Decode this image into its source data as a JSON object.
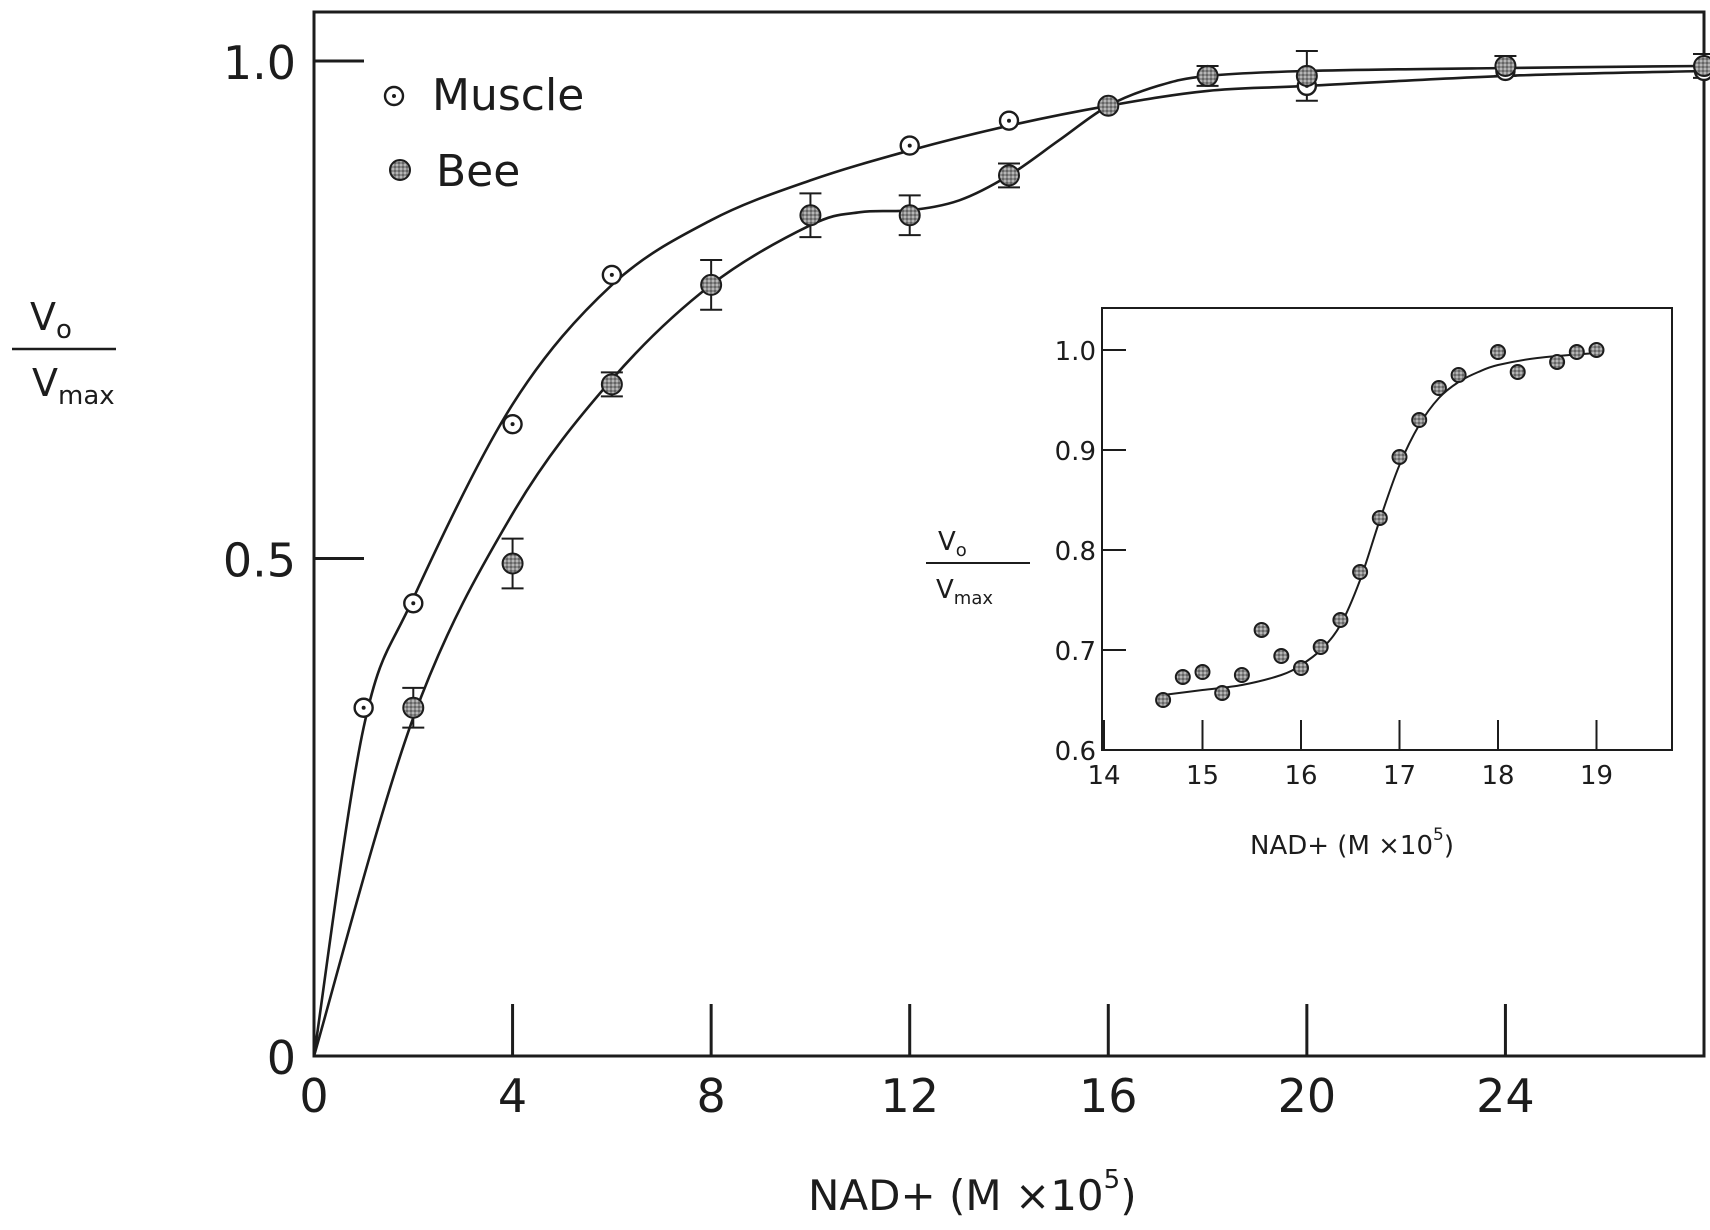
{
  "chart_data": [
    {
      "type": "scatter",
      "title": "",
      "xlabel": "NAD+  (M ×10",
      "xlabel_exp": "5",
      "xlabel_close": ")",
      "ylabel_num": "V",
      "ylabel_num_sub": "o",
      "ylabel_den": "V",
      "ylabel_den_sub": "max",
      "xlim": [
        0,
        28
      ],
      "ylim": [
        0,
        1.05
      ],
      "xticks": [
        0,
        4,
        8,
        12,
        16,
        20,
        24
      ],
      "xtick_labels": [
        "0",
        "4",
        "8",
        "12",
        "16",
        "20",
        "24"
      ],
      "yticks": [
        0,
        0.5,
        1.0
      ],
      "ytick_labels": [
        "0",
        "0.5",
        "1.0"
      ],
      "legend_position": "top-left",
      "series": [
        {
          "name": "Muscle",
          "marker": "open-dot",
          "x": [
            1,
            2,
            4,
            6,
            12,
            14,
            16,
            18,
            20,
            24,
            28
          ],
          "y": [
            0.35,
            0.455,
            0.635,
            0.785,
            0.915,
            0.94,
            0.955,
            0.985,
            0.975,
            0.99,
            0.99
          ],
          "curve": [
            [
              0,
              0
            ],
            [
              1,
              0.33
            ],
            [
              2,
              0.46
            ],
            [
              4,
              0.655
            ],
            [
              6,
              0.775
            ],
            [
              8,
              0.84
            ],
            [
              10,
              0.88
            ],
            [
              12,
              0.91
            ],
            [
              14,
              0.935
            ],
            [
              16,
              0.955
            ],
            [
              18,
              0.97
            ],
            [
              20,
              0.975
            ],
            [
              24,
              0.985
            ],
            [
              28,
              0.99
            ]
          ]
        },
        {
          "name": "Bee",
          "marker": "filled-dot",
          "x": [
            2,
            4,
            6,
            8,
            10,
            12,
            14,
            16,
            18,
            20,
            24,
            28
          ],
          "y": [
            0.35,
            0.495,
            0.675,
            0.775,
            0.845,
            0.845,
            0.885,
            0.955,
            0.985,
            0.985,
            0.995,
            0.995
          ],
          "err": [
            0.02,
            0.025,
            0.012,
            0.025,
            0.022,
            0.02,
            0.012,
            0.0,
            0.01,
            0.025,
            0.01,
            0.012
          ],
          "curve": [
            [
              0,
              0
            ],
            [
              2,
              0.34
            ],
            [
              4,
              0.545
            ],
            [
              6,
              0.68
            ],
            [
              8,
              0.775
            ],
            [
              10,
              0.835
            ],
            [
              11,
              0.848
            ],
            [
              12,
              0.85
            ],
            [
              13,
              0.86
            ],
            [
              14,
              0.885
            ],
            [
              15,
              0.92
            ],
            [
              16,
              0.955
            ],
            [
              17,
              0.975
            ],
            [
              18,
              0.985
            ],
            [
              20,
              0.99
            ],
            [
              24,
              0.993
            ],
            [
              28,
              0.995
            ]
          ]
        }
      ]
    },
    {
      "type": "scatter",
      "title": "",
      "xlabel": "NAD+  (M ×10",
      "xlabel_exp": "5",
      "xlabel_close": ")",
      "ylabel_num": "V",
      "ylabel_num_sub": "o",
      "ylabel_den": "V",
      "ylabel_den_sub": "max",
      "xlim": [
        14,
        19.8
      ],
      "ylim": [
        0.6,
        1.045
      ],
      "xticks": [
        14,
        15,
        16,
        17,
        18,
        19
      ],
      "xtick_labels": [
        "14",
        "15",
        "16",
        "17",
        "18",
        "19"
      ],
      "yticks": [
        0.6,
        0.7,
        0.8,
        0.9,
        1.0
      ],
      "ytick_labels": [
        "0.6",
        "0.7",
        "0.8",
        "0.9",
        "1.0"
      ],
      "series": [
        {
          "name": "",
          "marker": "filled-dot",
          "x": [
            14.6,
            14.8,
            15.0,
            15.2,
            15.4,
            15.6,
            15.8,
            16.0,
            16.2,
            16.4,
            16.6,
            16.8,
            17.0,
            17.2,
            17.4,
            17.6,
            18.0,
            18.2,
            18.6,
            18.8,
            19.0
          ],
          "y": [
            0.65,
            0.673,
            0.678,
            0.657,
            0.675,
            0.72,
            0.694,
            0.682,
            0.703,
            0.73,
            0.778,
            0.832,
            0.893,
            0.93,
            0.962,
            0.975,
            0.998,
            0.978,
            0.988,
            0.998,
            1.0
          ],
          "curve": [
            [
              14.6,
              0.655
            ],
            [
              15.0,
              0.66
            ],
            [
              15.4,
              0.665
            ],
            [
              15.8,
              0.675
            ],
            [
              16.0,
              0.685
            ],
            [
              16.2,
              0.7
            ],
            [
              16.4,
              0.725
            ],
            [
              16.6,
              0.77
            ],
            [
              16.8,
              0.83
            ],
            [
              17.0,
              0.885
            ],
            [
              17.2,
              0.925
            ],
            [
              17.4,
              0.952
            ],
            [
              17.6,
              0.968
            ],
            [
              17.8,
              0.978
            ],
            [
              18.0,
              0.985
            ],
            [
              18.4,
              0.992
            ],
            [
              19.0,
              0.997
            ]
          ]
        }
      ]
    }
  ]
}
